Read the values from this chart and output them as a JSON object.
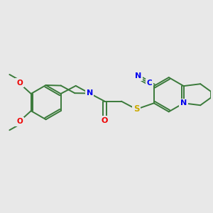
{
  "background_color": "#e8e8e8",
  "bond_color": "#3a7a3a",
  "atom_colors": {
    "N": "#0000ee",
    "O": "#ee0000",
    "S": "#ccaa00",
    "CN_N": "#0000ee",
    "CN_C": "#0000ee"
  },
  "figsize": [
    3.0,
    3.0
  ],
  "dpi": 100
}
